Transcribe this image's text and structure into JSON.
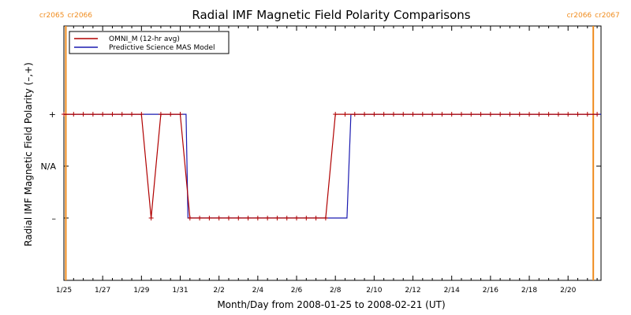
{
  "chart_data": {
    "type": "line",
    "title": "Radial IMF Magnetic Field Polarity Comparisons",
    "xlabel": "Month/Day from 2008-01-25 to 2008-02-21 (UT)",
    "ylabel": "Radial IMF Magnetic Field Polarity (–,+)",
    "xlim": [
      0,
      27.7
    ],
    "ylim": [
      -2.2,
      2.7
    ],
    "x_ticks": [
      {
        "x": 0,
        "label": "1/25"
      },
      {
        "x": 2,
        "label": "1/27"
      },
      {
        "x": 4,
        "label": "1/29"
      },
      {
        "x": 6,
        "label": "1/31"
      },
      {
        "x": 8,
        "label": "2/2"
      },
      {
        "x": 10,
        "label": "2/4"
      },
      {
        "x": 12,
        "label": "2/6"
      },
      {
        "x": 14,
        "label": "2/8"
      },
      {
        "x": 16,
        "label": "2/10"
      },
      {
        "x": 18,
        "label": "2/12"
      },
      {
        "x": 20,
        "label": "2/14"
      },
      {
        "x": 22,
        "label": "2/16"
      },
      {
        "x": 24,
        "label": "2/18"
      },
      {
        "x": 26,
        "label": "2/20"
      }
    ],
    "y_ticks": [
      {
        "y": 1,
        "label": "+"
      },
      {
        "y": 0,
        "label": "N/A"
      },
      {
        "y": -1,
        "label": "–"
      }
    ],
    "carrington_markers": [
      {
        "x": 0.1,
        "label_left": "cr2065",
        "label_right": "cr2066"
      },
      {
        "x": 27.3,
        "label_left": "cr2066",
        "label_right": "cr2067"
      }
    ],
    "series": [
      {
        "name": "OMNI_M (12-hr avg)",
        "color": "#b00000",
        "markers": true,
        "x": [
          0,
          0.5,
          1,
          1.5,
          2,
          2.5,
          3,
          3.5,
          4,
          4.5,
          5,
          5.5,
          6,
          6.5,
          7,
          7.5,
          8,
          8.5,
          9,
          9.5,
          10,
          10.5,
          11,
          11.5,
          12,
          12.5,
          13,
          13.5,
          14,
          14.5,
          15,
          15.5,
          16,
          16.5,
          17,
          17.5,
          18,
          18.5,
          19,
          19.5,
          20,
          20.5,
          21,
          21.5,
          22,
          22.5,
          23,
          23.5,
          24,
          24.5,
          25,
          25.5,
          26,
          26.5,
          27,
          27.5
        ],
        "y": [
          1,
          1,
          1,
          1,
          1,
          1,
          1,
          1,
          1,
          -1,
          1,
          1,
          1,
          -1,
          -1,
          -1,
          -1,
          -1,
          -1,
          -1,
          -1,
          -1,
          -1,
          -1,
          -1,
          -1,
          -1,
          -1,
          1,
          1,
          1,
          1,
          1,
          1,
          1,
          1,
          1,
          1,
          1,
          1,
          1,
          1,
          1,
          1,
          1,
          1,
          1,
          1,
          1,
          1,
          1,
          1,
          1,
          1,
          1,
          1
        ]
      },
      {
        "name": "Predictive Science MAS Model",
        "color": "#1a1ab0",
        "markers": false,
        "x": [
          0,
          6.3,
          6.4,
          14.6,
          14.8,
          27.7
        ],
        "y": [
          1,
          1,
          -1,
          -1,
          1,
          1
        ]
      }
    ],
    "legend_position": "top-left"
  }
}
